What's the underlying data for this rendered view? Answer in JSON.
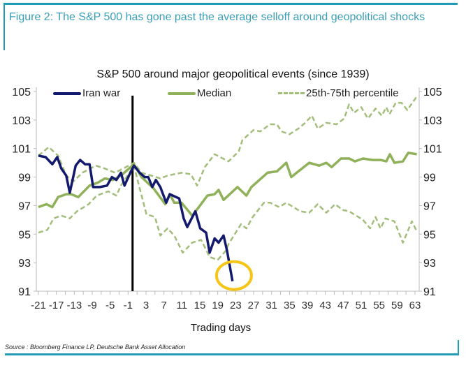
{
  "figure_title": "Figure 2: The S&P 500 has gone past the average selloff around geopolitical shocks",
  "source": "Source : Bloomberg Finance LP, Deutsche Bank Asset Allocation",
  "colors": {
    "frame": "#1f9bb5",
    "iran": "#131a6e",
    "median": "#8fb159",
    "percentile": "#a3bd7a",
    "highlight": "#f5c518",
    "event_line": "#000000"
  },
  "chart_data": {
    "type": "line",
    "title": "S&P 500 around major geopolitical events (since 1939)",
    "xlabel": "Trading days",
    "ylabel": "",
    "xlim": [
      -21,
      63
    ],
    "ylim": [
      91,
      105
    ],
    "yticks": [
      91,
      93,
      95,
      97,
      99,
      101,
      103,
      105
    ],
    "xticks": [
      -21,
      -17,
      -13,
      -9,
      -5,
      -1,
      3,
      7,
      11,
      15,
      19,
      23,
      27,
      31,
      35,
      39,
      43,
      47,
      51,
      55,
      59,
      63
    ],
    "grid": false,
    "legend_position": "top",
    "event_day": 0,
    "highlight": {
      "shape": "circle",
      "x": 22,
      "y": 92.0
    },
    "series": [
      {
        "name": "Iran war",
        "style": "solid-thick",
        "color": "#131a6e",
        "x": [
          -21,
          -19.4,
          -17.9,
          -16.8,
          -15.9,
          -14.8,
          -14,
          -12.7,
          -11.7,
          -10.6,
          -9.6,
          -8.8,
          -7.3,
          -5.7,
          -4.6,
          -3.6,
          -2.6,
          -1.8,
          -0.8,
          0.3,
          1.6,
          2.7,
          3.5,
          4.4,
          5.2,
          6.2,
          7.5,
          8.3,
          10.4,
          11.4,
          12.2,
          14,
          15.1,
          16.4,
          17.2,
          18.3,
          19.2,
          20.3,
          21.1,
          22.3
        ],
        "y": [
          100.5,
          100.4,
          99.9,
          100.4,
          99.6,
          99.1,
          97.9,
          99.8,
          100.2,
          99.9,
          99.9,
          98.3,
          98.3,
          98.4,
          99.0,
          98.8,
          99.3,
          98.4,
          99.1,
          99.8,
          99.3,
          99.0,
          99.0,
          98.3,
          98.8,
          98.3,
          97.2,
          97.8,
          97.5,
          96.1,
          95.5,
          96.6,
          95.4,
          95.1,
          93.7,
          94.7,
          94.4,
          94.9,
          93.8,
          91.7
        ]
      },
      {
        "name": "Median",
        "style": "solid",
        "color": "#8fb159",
        "x": [
          -21,
          -19.2,
          -17.9,
          -16.6,
          -14.8,
          -13.7,
          -12.1,
          -9.6,
          -7.8,
          -6.2,
          -4.4,
          -2.6,
          0.3,
          2,
          4.7,
          7.3,
          8.3,
          9.3,
          10.9,
          13.3,
          14.8,
          16.7,
          18.3,
          19.2,
          20.3,
          23.4,
          25.4,
          26.5,
          30.1,
          32.2,
          34.3,
          35.4,
          36.6,
          39.4,
          41.6,
          43.2,
          44.4,
          46.5,
          48.3,
          49.6,
          51.4,
          53.5,
          55.3,
          56.6,
          57.4,
          58.4,
          60.3,
          61.5,
          63.4
        ],
        "y": [
          96.9,
          97.1,
          96.9,
          97.6,
          97.8,
          97.8,
          97.6,
          98.4,
          98.6,
          98.9,
          98.8,
          99.1,
          99.9,
          99.0,
          98.2,
          97.1,
          97.8,
          97.2,
          97.2,
          96.3,
          96.9,
          97.7,
          97.8,
          98.1,
          97.4,
          98.3,
          97.7,
          98.3,
          99.3,
          99.4,
          100.0,
          99.0,
          99.3,
          100.0,
          99.8,
          100.0,
          99.7,
          100.3,
          100.3,
          100.1,
          100.3,
          100.2,
          100.2,
          100.1,
          100.6,
          100.0,
          100.1,
          100.7,
          100.6
        ]
      },
      {
        "name": "25th-75th percentile",
        "style": "dashed",
        "color": "#a3bd7a",
        "x": [
          -21,
          -18.7,
          -16.6,
          -14.8,
          -13.2,
          -11.2,
          -8.2,
          -6.2,
          -3.9,
          -1.5,
          0.3,
          2,
          4.2,
          6.2,
          7.8,
          10.9,
          13,
          14.4,
          16.1,
          18.3,
          21.4,
          23.7,
          24.5,
          27,
          28.5,
          30.7,
          32.2,
          33.2,
          35,
          37,
          38.5,
          40,
          41.3,
          43.2,
          45.5,
          47.2,
          48.3,
          49.4,
          51,
          52.5,
          54.2,
          55.6,
          56.6,
          57.3,
          58.7,
          60,
          61.3,
          63.5
        ],
        "y": [
          100.5,
          101.1,
          100.5,
          99.1,
          98.7,
          99.3,
          99.8,
          99.6,
          99.3,
          99.7,
          100.0,
          99.3,
          99.1,
          98.9,
          99.1,
          99.3,
          99.2,
          98.4,
          99.7,
          100.6,
          100.1,
          100.8,
          101.6,
          102.3,
          102.2,
          102.7,
          102.7,
          102.2,
          102.0,
          102.4,
          102.8,
          103.3,
          102.4,
          102.8,
          102.7,
          103.1,
          104.1,
          103.5,
          103.9,
          103.1,
          103.8,
          103.3,
          103.9,
          103.4,
          104.2,
          104.2,
          103.7,
          104.7
        ]
      },
      {
        "name": "",
        "style": "dashed",
        "color": "#a3bd7a",
        "x": [
          -21,
          -19,
          -17.6,
          -15.9,
          -14,
          -12.4,
          -9.8,
          -8,
          -5.4,
          -3.6,
          -2.6,
          0.3,
          1.6,
          3.1,
          5,
          6.2,
          7.8,
          9.3,
          11.2,
          13.3,
          15.3,
          17.2,
          19,
          20.7,
          21.4,
          24.2,
          25.4,
          26.8,
          29.3,
          30.7,
          32.7,
          34.3,
          37.4,
          39.4,
          41.3,
          43.2,
          45.2,
          46.8,
          48.3,
          51.4,
          53,
          54.2,
          55.3,
          56.4,
          58.4,
          60.3,
          62.3,
          63.4
        ],
        "y": [
          95.1,
          95.3,
          96.1,
          96.3,
          96.1,
          96.6,
          97.1,
          97.7,
          98.0,
          97.7,
          98.4,
          99.8,
          98.2,
          96.4,
          96.2,
          94.9,
          95.4,
          94.9,
          93.7,
          94.4,
          94.6,
          93.4,
          93.2,
          93.8,
          94.3,
          95.7,
          95.4,
          96.2,
          97.2,
          97.2,
          96.9,
          97.2,
          96.6,
          96.5,
          97.1,
          96.5,
          97.1,
          96.7,
          96.6,
          96.0,
          95.4,
          96.2,
          95.4,
          96.1,
          95.9,
          94.4,
          95.9,
          95.2
        ]
      }
    ]
  }
}
